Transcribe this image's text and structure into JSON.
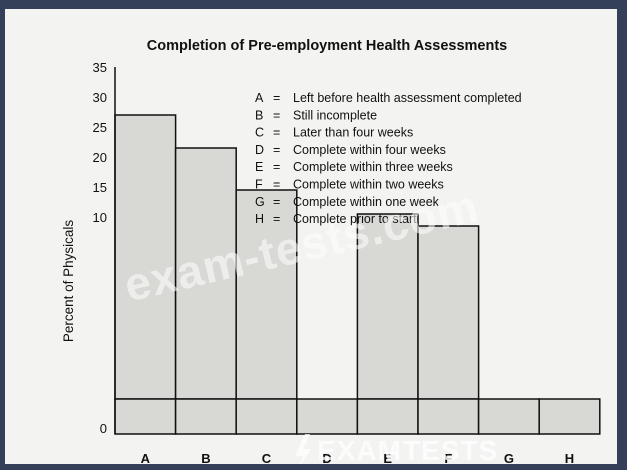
{
  "chart_data": {
    "type": "bar",
    "title": "Completion of Pre-employment Health Assessments",
    "ylabel": "Percent of Physicals",
    "xlabel": "",
    "ylim": [
      0,
      35
    ],
    "yticks": [
      0,
      10,
      15,
      20,
      25,
      30,
      35
    ],
    "categories": [
      "A",
      "B",
      "C",
      "D",
      "E",
      "F",
      "G",
      "H"
    ],
    "values": [
      27,
      21.5,
      14.5,
      0,
      10.5,
      8.5,
      0,
      0
    ],
    "legend": [
      {
        "key": "A",
        "sep": "=",
        "text": "Left before health assessment completed"
      },
      {
        "key": "B",
        "sep": "=",
        "text": "Still incomplete"
      },
      {
        "key": "C",
        "sep": "=",
        "text": "Later than four weeks"
      },
      {
        "key": "D",
        "sep": "=",
        "text": "Complete within four weeks"
      },
      {
        "key": "E",
        "sep": "=",
        "text": "Complete within three weeks"
      },
      {
        "key": "F",
        "sep": "=",
        "text": "Complete within two weeks"
      },
      {
        "key": "G",
        "sep": "=",
        "text": "Complete within one week"
      },
      {
        "key": "H",
        "sep": "=",
        "text": "Complete prior to start"
      }
    ],
    "legend_position": "top-right",
    "grid": false,
    "colors": {
      "bar_fill": "#d8d8d4",
      "outline": "#111111",
      "background": "#f3f3f1"
    }
  },
  "watermarks": {
    "diagonal": "exam-tests.com",
    "brand_left": "EXAM",
    "brand_sep": "-",
    "brand_right": "TESTS",
    "brand_icon": "bolt-icon"
  },
  "theme": {
    "outer_background": "#34405a"
  }
}
